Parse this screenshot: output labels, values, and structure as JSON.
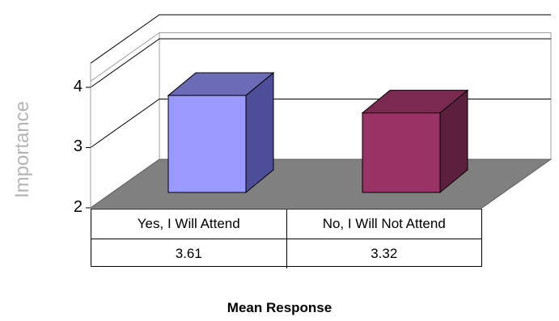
{
  "chart_data": {
    "type": "bar",
    "title": "",
    "xlabel": "Mean Response",
    "ylabel": "Importance",
    "ylim": [
      2,
      4.5
    ],
    "yticks": [
      "2",
      "3",
      "4"
    ],
    "grid": true,
    "categories": [
      "Yes, I Will Attend",
      "No, I Will Not Attend"
    ],
    "values": [
      3.61,
      3.32
    ],
    "value_labels": [
      "3.61",
      "3.32"
    ],
    "colors": [
      "#9999ff",
      "#993366"
    ],
    "floor_color": "#808080"
  }
}
